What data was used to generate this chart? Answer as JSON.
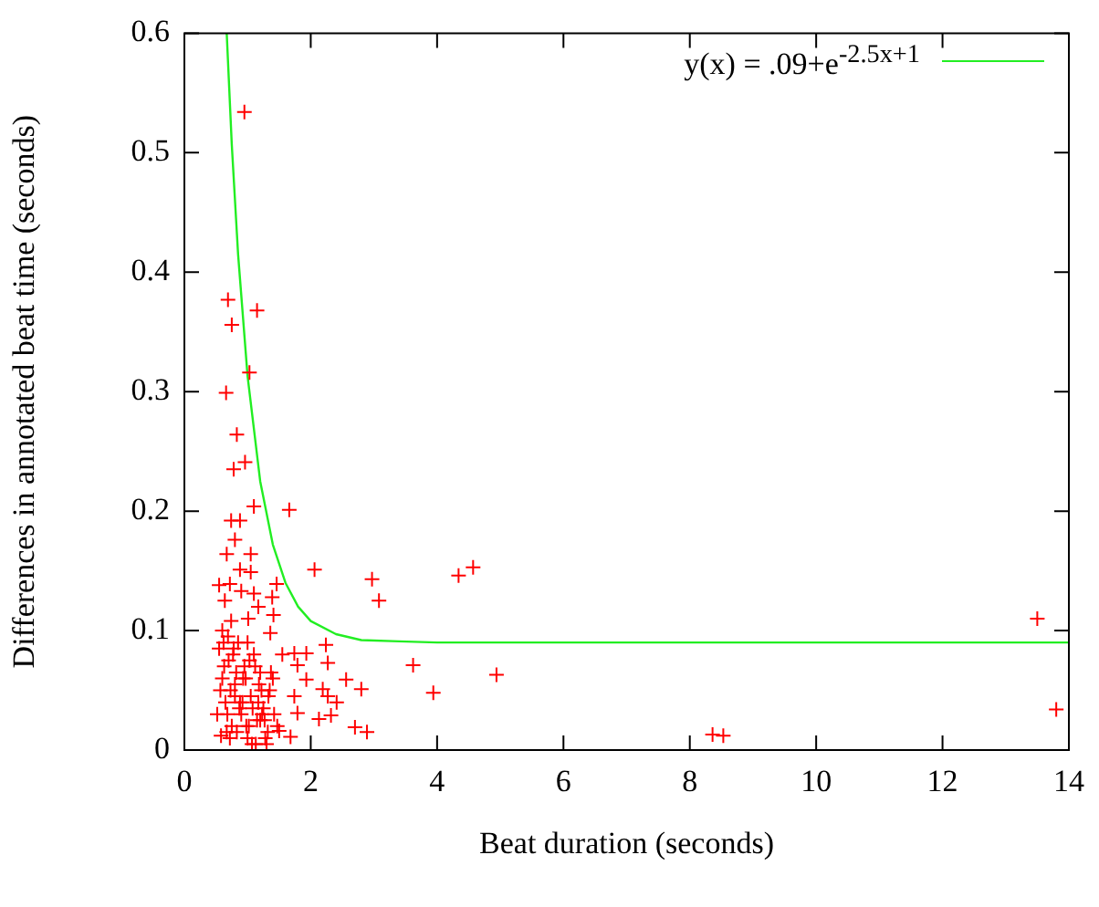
{
  "chart_data": {
    "type": "scatter",
    "xlabel": "Beat duration (seconds)",
    "ylabel": "Differences in annotated beat time (seconds)",
    "xlim": [
      0,
      14
    ],
    "ylim": [
      0,
      0.6
    ],
    "xticks": [
      0,
      2,
      4,
      6,
      8,
      10,
      12,
      14
    ],
    "yticks": [
      0,
      0.1,
      0.2,
      0.3,
      0.4,
      0.5,
      0.6
    ],
    "grid": false,
    "legend": "top right",
    "series": [
      {
        "color": "#ff0000",
        "marker": "cross",
        "x": [
          0.95,
          0.69,
          1.15,
          0.75,
          1.03,
          0.66,
          0.83,
          0.78,
          0.96,
          1.1,
          1.66,
          0.74,
          0.88,
          0.8,
          0.67,
          1.05,
          2.06,
          2.97,
          3.08,
          4.34,
          4.57,
          3.62,
          3.94,
          4.94,
          8.36,
          8.53,
          13.5,
          13.8,
          0.88,
          1.05,
          0.55,
          0.72,
          0.9,
          1.1,
          1.46,
          1.39,
          0.64,
          1.17,
          0.74,
          1.01,
          1.41,
          1.36,
          0.69,
          1.55,
          1.74,
          1.93,
          2.24,
          2.27,
          1.79,
          1.93,
          2.56,
          2.8,
          2.19,
          2.27,
          1.74,
          2.41,
          2.13,
          2.32,
          2.7,
          2.89,
          1.79,
          1.5,
          1.68,
          0.55,
          0.6,
          0.65,
          0.7,
          0.75,
          0.8,
          0.85,
          0.9,
          0.95,
          1.0,
          1.05,
          1.1,
          1.15,
          1.2,
          1.25,
          1.3,
          1.35,
          0.58,
          0.63,
          0.68,
          0.73,
          0.78,
          0.83,
          0.88,
          0.93,
          0.98,
          1.03,
          1.08,
          1.13,
          1.18,
          1.23,
          1.28,
          1.33,
          0.52,
          0.62,
          0.72,
          0.82,
          0.92,
          1.02,
          1.12,
          1.22,
          1.32,
          1.42,
          0.57,
          0.67,
          0.77,
          0.87,
          0.97,
          1.07,
          1.17,
          1.27,
          1.37,
          1.47,
          0.6,
          0.8,
          1.0,
          1.2,
          1.4
        ],
        "values": [
          0.534,
          0.377,
          0.368,
          0.356,
          0.316,
          0.299,
          0.264,
          0.235,
          0.241,
          0.204,
          0.201,
          0.192,
          0.192,
          0.176,
          0.164,
          0.164,
          0.151,
          0.143,
          0.125,
          0.146,
          0.153,
          0.071,
          0.048,
          0.063,
          0.013,
          0.012,
          0.11,
          0.034,
          0.151,
          0.149,
          0.138,
          0.139,
          0.133,
          0.131,
          0.139,
          0.128,
          0.125,
          0.12,
          0.108,
          0.11,
          0.113,
          0.098,
          0.095,
          0.08,
          0.081,
          0.081,
          0.088,
          0.073,
          0.071,
          0.059,
          0.059,
          0.051,
          0.051,
          0.045,
          0.045,
          0.04,
          0.026,
          0.029,
          0.019,
          0.015,
          0.031,
          0.016,
          0.011,
          0.085,
          0.06,
          0.04,
          0.075,
          0.02,
          0.055,
          0.09,
          0.03,
          0.07,
          0.01,
          0.045,
          0.08,
          0.025,
          0.065,
          0.035,
          0.005,
          0.05,
          0.012,
          0.07,
          0.03,
          0.05,
          0.085,
          0.015,
          0.04,
          0.06,
          0.02,
          0.075,
          0.035,
          0.005,
          0.055,
          0.03,
          0.01,
          0.045,
          0.03,
          0.09,
          0.01,
          0.065,
          0.04,
          0.02,
          0.07,
          0.05,
          0.015,
          0.03,
          0.05,
          0.015,
          0.08,
          0.035,
          0.06,
          0.005,
          0.04,
          0.025,
          0.065,
          0.02,
          0.1,
          0.045,
          0.09,
          0.025,
          0.06
        ]
      },
      {
        "type": "line",
        "marker": "none",
        "name": "y(x) = .09+e$^{-2.5x+1}$",
        "color": "#22ee22",
        "x": [
          0.67,
          0.75,
          0.85,
          1.0,
          1.2,
          1.4,
          1.6,
          1.8,
          2.0,
          2.4,
          2.8,
          3.4,
          4,
          14
        ],
        "values": [
          0.6,
          0.507,
          0.415,
          0.313,
          0.225,
          0.172,
          0.14,
          0.12,
          0.108,
          0.097,
          0.092,
          0.091,
          0.09,
          0.09
        ]
      }
    ]
  }
}
